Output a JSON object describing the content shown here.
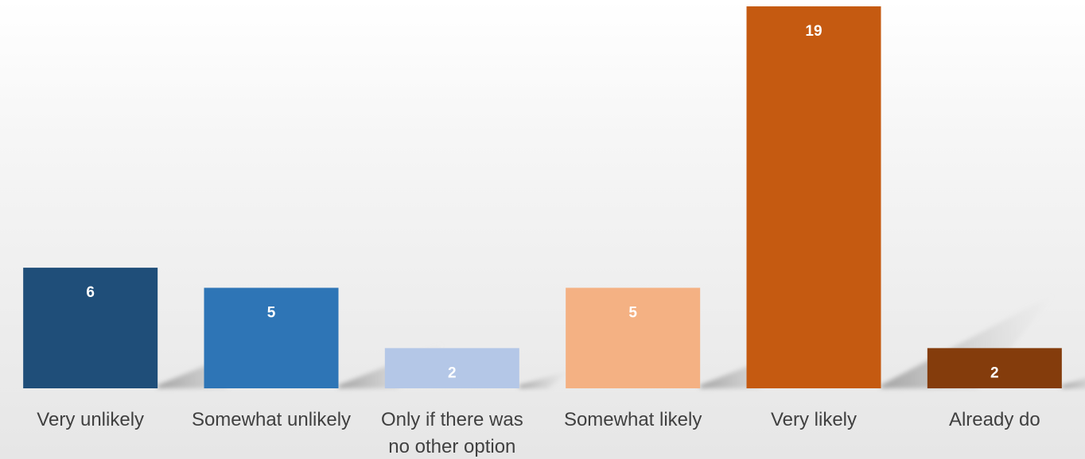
{
  "chart_data": {
    "type": "bar",
    "title": "",
    "xlabel": "",
    "ylabel": "",
    "categories": [
      [
        "Very unlikely"
      ],
      [
        "Somewhat unlikely"
      ],
      [
        "Only if there was",
        "no other option"
      ],
      [
        "Somewhat likely"
      ],
      [
        "Very likely"
      ],
      [
        "Already do"
      ]
    ],
    "values": [
      6,
      5,
      2,
      5,
      19,
      2
    ],
    "colors": [
      "#1f4e79",
      "#2e75b6",
      "#b4c7e7",
      "#f4b183",
      "#c55a11",
      "#843c0c"
    ],
    "ylim": [
      0,
      19
    ],
    "grid": false,
    "legend": "none",
    "data_labels": true
  }
}
